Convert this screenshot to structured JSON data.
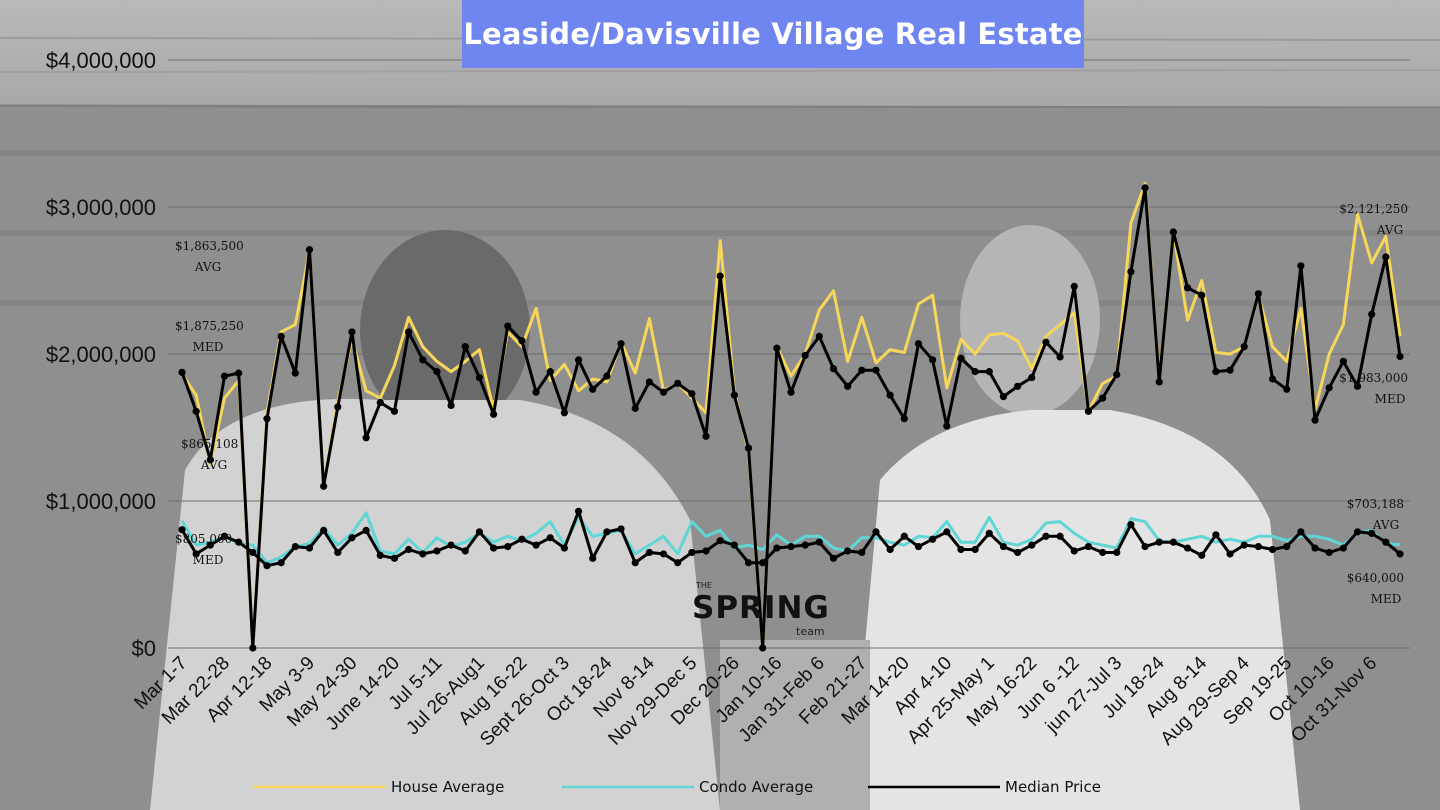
{
  "title": "Leaside/Davisville Village Real Estate",
  "logo": {
    "small_text": "THE",
    "main_text": "SPRING",
    "sub_text": "team"
  },
  "colors": {
    "house": "#f6d75a",
    "condo": "#5fd6d6",
    "median": "#000000",
    "title_bg": "#6f86f0"
  },
  "chart_data": {
    "type": "line",
    "title": "Leaside/Davisville Village Real Estate",
    "xlabel": "",
    "ylabel": "",
    "ylim": [
      0,
      4000000
    ],
    "grid": true,
    "legend_position": "bottom",
    "y_tick_labels": [
      {
        "value": 0,
        "label": "$0"
      },
      {
        "value": 1000000,
        "label": "$1,000,000"
      },
      {
        "value": 2000000,
        "label": "$2,000,000"
      },
      {
        "value": 3000000,
        "label": "$3,000,000"
      },
      {
        "value": 4000000,
        "label": "$4,000,000"
      }
    ],
    "x_tick_labels": [
      {
        "index": 0,
        "label": "Mar 1-7"
      },
      {
        "index": 3,
        "label": "Mar 22-28"
      },
      {
        "index": 6,
        "label": "Apr 12-18"
      },
      {
        "index": 9,
        "label": "May 3-9"
      },
      {
        "index": 12,
        "label": "May 24-30"
      },
      {
        "index": 15,
        "label": "June 14-20"
      },
      {
        "index": 18,
        "label": "Jul 5-11"
      },
      {
        "index": 21,
        "label": "Jul 26-Aug1"
      },
      {
        "index": 24,
        "label": "Aug 16-22"
      },
      {
        "index": 27,
        "label": "Sept 26-Oct 3"
      },
      {
        "index": 30,
        "label": "Oct 18-24"
      },
      {
        "index": 33,
        "label": "Nov 8-14"
      },
      {
        "index": 36,
        "label": "Nov 29-Dec 5"
      },
      {
        "index": 39,
        "label": "Dec 20-26"
      },
      {
        "index": 42,
        "label": "Jan 10-16"
      },
      {
        "index": 45,
        "label": "Jan 31-Feb 6"
      },
      {
        "index": 48,
        "label": "Feb 21-27"
      },
      {
        "index": 51,
        "label": "Mar 14-20"
      },
      {
        "index": 54,
        "label": "Apr 4-10"
      },
      {
        "index": 57,
        "label": "Apr 25-May 1"
      },
      {
        "index": 60,
        "label": "May 16-22"
      },
      {
        "index": 63,
        "label": "Jun 6 -12"
      },
      {
        "index": 66,
        "label": "jun 27-Jul 3"
      },
      {
        "index": 69,
        "label": "Jul 18-24"
      },
      {
        "index": 72,
        "label": "Aug 8-14"
      },
      {
        "index": 75,
        "label": "Aug 29-Sep 4"
      },
      {
        "index": 78,
        "label": "Sep 19-25"
      },
      {
        "index": 81,
        "label": "Oct 10-16"
      },
      {
        "index": 84,
        "label": "Oct 31-Nov 6"
      }
    ],
    "series": [
      {
        "name": "House Average",
        "color": "#f6d75a",
        "markers": false,
        "values": [
          1863500,
          1720000,
          1250000,
          1700000,
          1820000,
          0,
          1600000,
          2150000,
          2200000,
          2700000,
          1100000,
          1680000,
          2100000,
          1750000,
          1700000,
          1920000,
          2250000,
          2050000,
          1950000,
          1880000,
          1950000,
          2030000,
          1620000,
          2150000,
          2050000,
          2310000,
          1820000,
          1930000,
          1750000,
          1830000,
          1810000,
          2080000,
          1870000,
          2240000,
          1750000,
          1800000,
          1700000,
          1600000,
          2770000,
          1750000,
          1330000,
          0,
          2050000,
          1850000,
          2000000,
          2300000,
          2430000,
          1950000,
          2250000,
          1940000,
          2030000,
          2010000,
          2340000,
          2400000,
          1770000,
          2100000,
          2000000,
          2130000,
          2140000,
          2090000,
          1900000,
          2120000,
          2200000,
          2280000,
          1610000,
          1800000,
          1850000,
          2890000,
          3160000,
          1830000,
          2830000,
          2230000,
          2500000,
          2010000,
          2000000,
          2050000,
          2400000,
          2050000,
          1950000,
          2310000,
          1620000,
          2000000,
          2200000,
          2950000,
          2620000,
          2800000,
          2121250
        ]
      },
      {
        "name": "Condo Average",
        "color": "#5fd6d6",
        "markers": false,
        "values": [
          865108,
          700000,
          720000,
          760000,
          710000,
          700000,
          580000,
          620000,
          690000,
          710000,
          820000,
          700000,
          780000,
          920000,
          660000,
          640000,
          740000,
          650000,
          750000,
          690000,
          720000,
          780000,
          720000,
          760000,
          730000,
          780000,
          860000,
          700000,
          890000,
          760000,
          780000,
          800000,
          640000,
          700000,
          760000,
          640000,
          860000,
          760000,
          800000,
          680000,
          700000,
          670000,
          770000,
          700000,
          760000,
          760000,
          680000,
          660000,
          750000,
          750000,
          720000,
          700000,
          760000,
          750000,
          860000,
          720000,
          720000,
          890000,
          720000,
          700000,
          740000,
          850000,
          860000,
          780000,
          720000,
          700000,
          680000,
          880000,
          860000,
          730000,
          720000,
          740000,
          760000,
          720000,
          740000,
          720000,
          760000,
          760000,
          730000,
          760000,
          760000,
          740000,
          700000,
          780000,
          800000,
          710000,
          703188
        ]
      },
      {
        "name": "Median Price",
        "color": "#000000",
        "markers": true,
        "values": [
          1875250,
          1610000,
          1280000,
          1850000,
          1870000,
          0,
          1560000,
          2120000,
          1870000,
          2710000,
          1100000,
          1640000,
          2150000,
          1430000,
          1670000,
          1610000,
          2150000,
          1960000,
          1880000,
          1650000,
          2050000,
          1840000,
          1590000,
          2190000,
          2090000,
          1740000,
          1880000,
          1600000,
          1960000,
          1760000,
          1850000,
          2070000,
          1630000,
          1810000,
          1740000,
          1800000,
          1730000,
          1440000,
          2530000,
          1720000,
          1360000,
          0,
          2040000,
          1740000,
          1990000,
          2120000,
          1900000,
          1780000,
          1890000,
          1890000,
          1720000,
          1560000,
          2070000,
          1960000,
          1510000,
          1970000,
          1880000,
          1880000,
          1710000,
          1780000,
          1840000,
          2080000,
          1980000,
          2460000,
          1610000,
          1700000,
          1860000,
          2560000,
          3130000,
          1810000,
          2830000,
          2450000,
          2400000,
          1880000,
          1890000,
          2050000,
          2410000,
          1830000,
          1760000,
          2600000,
          1550000,
          1770000,
          1950000,
          1780000,
          2270000,
          2660000,
          1983000
        ]
      },
      {
        "name": "Condo Median",
        "color": "#000000",
        "markers": true,
        "legend": false,
        "values": [
          805000,
          640000,
          700000,
          760000,
          720000,
          650000,
          560000,
          580000,
          690000,
          680000,
          800000,
          650000,
          750000,
          800000,
          630000,
          610000,
          670000,
          640000,
          660000,
          700000,
          660000,
          790000,
          680000,
          690000,
          740000,
          700000,
          750000,
          680000,
          930000,
          610000,
          790000,
          810000,
          580000,
          650000,
          640000,
          580000,
          650000,
          660000,
          730000,
          700000,
          580000,
          580000,
          680000,
          690000,
          700000,
          720000,
          610000,
          660000,
          650000,
          790000,
          670000,
          760000,
          690000,
          740000,
          790000,
          670000,
          670000,
          780000,
          690000,
          650000,
          700000,
          760000,
          760000,
          660000,
          690000,
          650000,
          650000,
          840000,
          690000,
          720000,
          720000,
          680000,
          630000,
          770000,
          640000,
          700000,
          690000,
          670000,
          690000,
          790000,
          680000,
          650000,
          680000,
          790000,
          780000,
          720000,
          640000
        ]
      }
    ],
    "annotations": [
      {
        "lines": [
          "$1,863,500",
          "AVG"
        ],
        "anchor": "start-left"
      },
      {
        "lines": [
          "$1,875,250",
          "MED"
        ],
        "anchor": "start-left"
      },
      {
        "lines": [
          "$865,108",
          "AVG"
        ],
        "anchor": "start-left"
      },
      {
        "lines": [
          "$805,000",
          "MED"
        ],
        "anchor": "start-left"
      },
      {
        "lines": [
          "$2,121,250",
          "AVG"
        ],
        "anchor": "end-right"
      },
      {
        "lines": [
          "$1,983,000",
          "MED"
        ],
        "anchor": "end-right"
      },
      {
        "lines": [
          "$703,188",
          "AVG"
        ],
        "anchor": "end-right"
      },
      {
        "lines": [
          "$640,000",
          "MED"
        ],
        "anchor": "end-right"
      }
    ],
    "legend": [
      "House Average",
      "Condo Average",
      "Median Price"
    ]
  }
}
